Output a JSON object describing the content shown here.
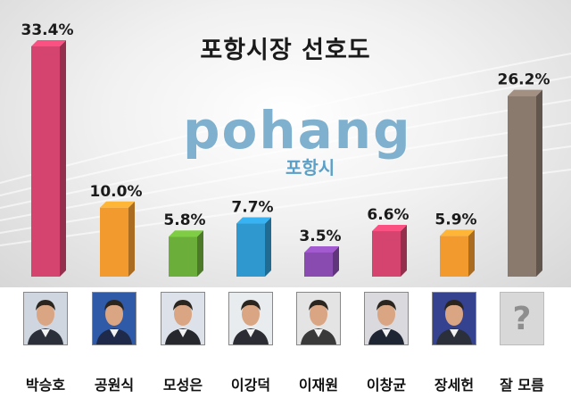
{
  "chart_data": {
    "type": "bar",
    "title": "포항시장 선호도",
    "categories": [
      "박승호",
      "공원식",
      "모성은",
      "이강덕",
      "이재원",
      "이창균",
      "장세헌",
      "잘 모름"
    ],
    "values": [
      33.4,
      10.0,
      5.8,
      7.7,
      3.5,
      6.6,
      5.9,
      26.2
    ],
    "value_labels": [
      "33.4%",
      "10.0%",
      "5.8%",
      "7.7%",
      "3.5%",
      "6.6%",
      "5.9%",
      "26.2%"
    ],
    "unit": "%",
    "colors": [
      "#d4446e",
      "#f39a2f",
      "#6cae3a",
      "#2f98cf",
      "#8a4bb0",
      "#d4446e",
      "#f39a2f",
      "#8a7a6e"
    ],
    "ylim": [
      0,
      35
    ],
    "grid": false,
    "legend": "none"
  },
  "logo": {
    "word": "pohang",
    "subtitle": "포항시"
  },
  "unknown_photo_glyph": "?"
}
